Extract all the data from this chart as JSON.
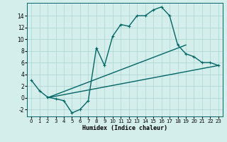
{
  "title": "",
  "xlabel": "Humidex (Indice chaleur)",
  "bg_color": "#d4eeeb",
  "line_color": "#006666",
  "grid_color": "#aad4d0",
  "xlim": [
    -0.5,
    23.5
  ],
  "ylim": [
    -3.2,
    16.2
  ],
  "xticks": [
    0,
    1,
    2,
    3,
    4,
    5,
    6,
    7,
    8,
    9,
    10,
    11,
    12,
    13,
    14,
    15,
    16,
    17,
    18,
    19,
    20,
    21,
    22,
    23
  ],
  "yticks": [
    -2,
    0,
    2,
    4,
    6,
    8,
    10,
    12,
    14
  ],
  "curve1_x": [
    0,
    1,
    2,
    3,
    4,
    5,
    6,
    7,
    8,
    9,
    10,
    11,
    12,
    13,
    14,
    15,
    16,
    17,
    18,
    19,
    20,
    21,
    22,
    23
  ],
  "curve1_y": [
    3,
    1.2,
    0.1,
    -0.2,
    -0.5,
    -2.6,
    -2.0,
    -0.5,
    8.5,
    5.5,
    10.5,
    12.5,
    12.2,
    14.0,
    14.0,
    15.0,
    15.5,
    14.0,
    9.0,
    7.5,
    7.0,
    6.0,
    6.0,
    5.5
  ],
  "curve2_x": [
    2,
    19
  ],
  "curve2_y": [
    0,
    9.0
  ],
  "curve3_x": [
    2,
    23
  ],
  "curve3_y": [
    0,
    5.5
  ],
  "linewidth": 1.0,
  "markersize": 2.5,
  "xlabel_fontsize": 6.0,
  "tick_fontsize": 5.0
}
